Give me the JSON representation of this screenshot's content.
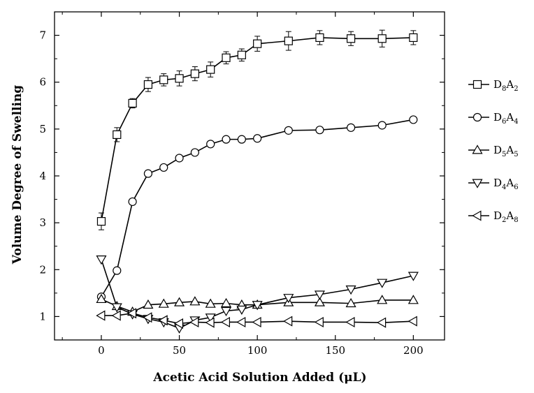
{
  "chart_data": {
    "type": "line",
    "xlabel": "Acetic Acid Solution Added (μL)",
    "ylabel": "Volume Degree of Swelling",
    "xlim": [
      -30,
      220
    ],
    "ylim": [
      0.5,
      7.5
    ],
    "x_ticks": [
      0,
      50,
      100,
      150,
      200
    ],
    "y_ticks": [
      1,
      2,
      3,
      4,
      5,
      6,
      7
    ],
    "x_tick_labels": [
      "0",
      "50",
      "100",
      "150",
      "200"
    ],
    "y_tick_labels": [
      "1",
      "2",
      "3",
      "4",
      "5",
      "6",
      "7"
    ],
    "grid": false,
    "legend_position": "right",
    "series": [
      {
        "name": "D8A2",
        "legend": {
          "base1": "D",
          "sub1": "8",
          "base2": "A",
          "sub2": "2"
        },
        "marker": "square",
        "x": [
          0,
          10,
          20,
          30,
          40,
          50,
          60,
          70,
          80,
          90,
          100,
          120,
          140,
          160,
          180,
          200
        ],
        "y": [
          3.03,
          4.88,
          5.55,
          5.95,
          6.05,
          6.08,
          6.18,
          6.27,
          6.52,
          6.58,
          6.82,
          6.88,
          6.95,
          6.93,
          6.93,
          6.95
        ],
        "err": [
          0.18,
          0.15,
          0.1,
          0.15,
          0.13,
          0.16,
          0.15,
          0.16,
          0.13,
          0.13,
          0.16,
          0.2,
          0.15,
          0.15,
          0.18,
          0.15
        ]
      },
      {
        "name": "D6A4",
        "legend": {
          "base1": "D",
          "sub1": "6",
          "base2": "A",
          "sub2": "4"
        },
        "marker": "circle",
        "x": [
          0,
          10,
          20,
          30,
          40,
          50,
          60,
          70,
          80,
          90,
          100,
          120,
          140,
          160,
          180,
          200
        ],
        "y": [
          1.42,
          1.98,
          3.45,
          4.05,
          4.18,
          4.38,
          4.5,
          4.68,
          4.78,
          4.78,
          4.8,
          4.97,
          4.98,
          5.03,
          5.08,
          5.2
        ]
      },
      {
        "name": "D5A5",
        "legend": {
          "base1": "D",
          "sub1": "5",
          "base2": "A",
          "sub2": "5"
        },
        "marker": "triangle-up",
        "x": [
          0,
          10,
          20,
          30,
          40,
          50,
          60,
          70,
          80,
          90,
          100,
          120,
          140,
          160,
          180,
          200
        ],
        "y": [
          1.37,
          1.22,
          1.1,
          1.25,
          1.27,
          1.3,
          1.32,
          1.27,
          1.28,
          1.25,
          1.25,
          1.3,
          1.3,
          1.28,
          1.35,
          1.35
        ]
      },
      {
        "name": "D4A6",
        "legend": {
          "base1": "D",
          "sub1": "4",
          "base2": "A",
          "sub2": "6"
        },
        "marker": "triangle-down",
        "x": [
          0,
          10,
          20,
          30,
          40,
          50,
          60,
          70,
          80,
          90,
          100,
          120,
          140,
          160,
          180,
          200
        ],
        "y": [
          2.22,
          1.2,
          1.05,
          0.95,
          0.88,
          0.75,
          0.92,
          0.98,
          1.12,
          1.15,
          1.25,
          1.4,
          1.47,
          1.58,
          1.72,
          1.87
        ]
      },
      {
        "name": "D2A8",
        "legend": {
          "base1": "D",
          "sub1": "2",
          "base2": "A",
          "sub2": "8"
        },
        "marker": "triangle-left",
        "x": [
          0,
          10,
          20,
          30,
          40,
          50,
          60,
          70,
          80,
          90,
          100,
          120,
          140,
          160,
          180,
          200
        ],
        "y": [
          1.02,
          1.02,
          1.07,
          0.98,
          0.92,
          0.85,
          0.88,
          0.87,
          0.88,
          0.88,
          0.88,
          0.9,
          0.88,
          0.88,
          0.87,
          0.9
        ]
      }
    ]
  }
}
